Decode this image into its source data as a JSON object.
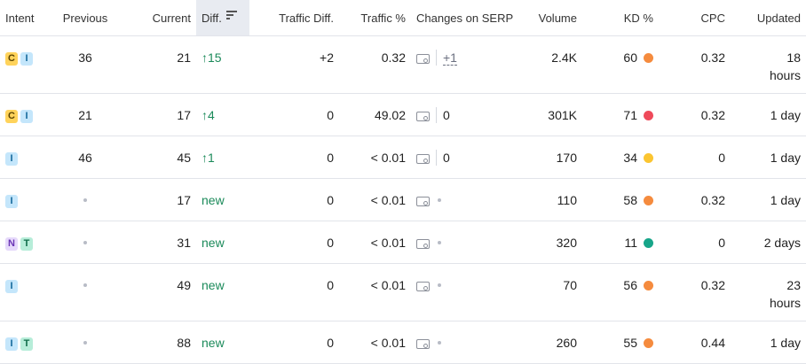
{
  "headers": {
    "intent": "Intent",
    "previous": "Previous",
    "current": "Current",
    "diff": "Diff.",
    "traffic_diff": "Traffic Diff.",
    "traffic_pct": "Traffic %",
    "changes_serp": "Changes on SERP",
    "volume": "Volume",
    "kd": "KD %",
    "cpc": "CPC",
    "updated": "Updated"
  },
  "colors": {
    "kd_orange": "#f58b3e",
    "kd_red": "#ef4a5a",
    "kd_yellow": "#fbc531",
    "kd_green": "#17a589"
  },
  "rows": [
    {
      "intents": [
        "C",
        "I"
      ],
      "previous": "36",
      "current": "21",
      "diff": "↑15",
      "diff_type": "up",
      "traffic_diff": "+2",
      "traffic_pct": "0.32",
      "serp": "+1",
      "serp_type": "change",
      "volume": "2.4K",
      "kd": "60",
      "kd_color": "#f58b3e",
      "cpc": "0.32",
      "updated": "18\nhours"
    },
    {
      "intents": [
        "C",
        "I"
      ],
      "previous": "21",
      "current": "17",
      "diff": "↑4",
      "diff_type": "up",
      "traffic_diff": "0",
      "traffic_pct": "49.02",
      "serp": "0",
      "serp_type": "value",
      "volume": "301K",
      "kd": "71",
      "kd_color": "#ef4a5a",
      "cpc": "0.32",
      "updated": "1 day"
    },
    {
      "intents": [
        "I"
      ],
      "previous": "46",
      "current": "45",
      "diff": "↑1",
      "diff_type": "up",
      "traffic_diff": "0",
      "traffic_pct": "< 0.01",
      "serp": "0",
      "serp_type": "value",
      "volume": "170",
      "kd": "34",
      "kd_color": "#fbc531",
      "cpc": "0",
      "updated": "1 day"
    },
    {
      "intents": [
        "I"
      ],
      "previous": "",
      "current": "17",
      "diff": "new",
      "diff_type": "new",
      "traffic_diff": "0",
      "traffic_pct": "< 0.01",
      "serp": "",
      "serp_type": "none",
      "volume": "110",
      "kd": "58",
      "kd_color": "#f58b3e",
      "cpc": "0.32",
      "updated": "1 day"
    },
    {
      "intents": [
        "N",
        "T"
      ],
      "previous": "",
      "current": "31",
      "diff": "new",
      "diff_type": "new",
      "traffic_diff": "0",
      "traffic_pct": "< 0.01",
      "serp": "",
      "serp_type": "none",
      "volume": "320",
      "kd": "11",
      "kd_color": "#17a589",
      "cpc": "0",
      "updated": "2 days"
    },
    {
      "intents": [
        "I"
      ],
      "previous": "",
      "current": "49",
      "diff": "new",
      "diff_type": "new",
      "traffic_diff": "0",
      "traffic_pct": "< 0.01",
      "serp": "",
      "serp_type": "none",
      "volume": "70",
      "kd": "56",
      "kd_color": "#f58b3e",
      "cpc": "0.32",
      "updated": "23\nhours"
    },
    {
      "intents": [
        "I",
        "T"
      ],
      "previous": "",
      "current": "88",
      "diff": "new",
      "diff_type": "new",
      "traffic_diff": "0",
      "traffic_pct": "< 0.01",
      "serp": "",
      "serp_type": "none",
      "volume": "260",
      "kd": "55",
      "kd_color": "#f58b3e",
      "cpc": "0.44",
      "updated": "1 day"
    }
  ]
}
